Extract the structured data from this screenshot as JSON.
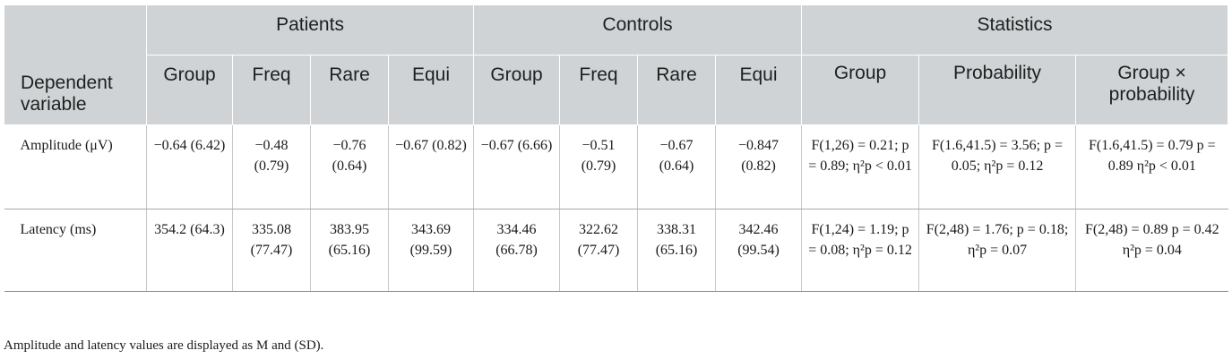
{
  "table": {
    "group_headers": [
      "Patients",
      "Controls",
      "Statistics"
    ],
    "stat_headers": [
      "Group",
      "Probability",
      "Group × probability"
    ],
    "dependent_variable_label": "Dependent variable",
    "sub_headers": [
      "Group",
      "Freq",
      "Rare",
      "Equi",
      "Group",
      "Freq",
      "Rare",
      "Equi"
    ],
    "rows": [
      {
        "label": "Amplitude (μV)",
        "cells": [
          "−0.64 (6.42)",
          "−0.48 (0.79)",
          "−0.76 (0.64)",
          "−0.67 (0.82)",
          "−0.67 (6.66)",
          "−0.51 (0.79)",
          "−0.67 (0.64)",
          "−0.847 (0.82)"
        ],
        "stats": [
          "F(1,26) = 0.21; p = 0.89; η²p < 0.01",
          "F(1.6,41.5) = 3.56; p = 0.05; η²p = 0.12",
          "F(1.6,41.5) = 0.79 p = 0.89 η²p < 0.01"
        ]
      },
      {
        "label": "Latency (ms)",
        "cells": [
          "354.2 (64.3)",
          "335.08 (77.47)",
          "383.95 (65.16)",
          "343.69 (99.59)",
          "334.46 (66.78)",
          "322.62 (77.47)",
          "338.31 (65.16)",
          "342.46 (99.54)"
        ],
        "stats": [
          "F(1,24) = 1.19; p = 0.08; η²p = 0.12",
          "F(2,48) = 1.76; p = 0.18; η²p = 0.07",
          "F(2,48) = 0.89 p = 0.42 η²p = 0.04"
        ]
      }
    ]
  },
  "footnote": "Amplitude and latency values are displayed as M and (SD)."
}
